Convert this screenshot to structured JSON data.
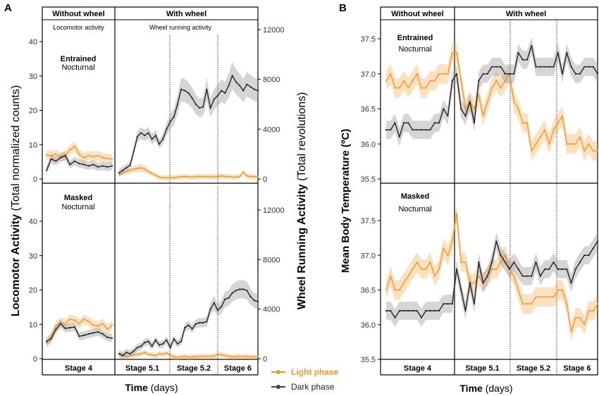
{
  "chart_data": [
    {
      "panel": "A",
      "type": "line",
      "ylabel_left_bold": "Locomotor Activity",
      "ylabel_left_normal": " (Total normalized counts)",
      "ylabel_right_bold": "Wheel Running Activity",
      "ylabel_right_normal": " (Total revolutions)",
      "xlabel_bold": "Time",
      "xlabel_normal": " (days)",
      "header_left": "Without wheel",
      "header_right": "With wheel",
      "sub_left": "Locomotor activity",
      "sub_right": "Wheel running activity",
      "left_ylim": [
        0,
        45
      ],
      "left_ticks": [
        "0",
        "10",
        "20",
        "30",
        "40"
      ],
      "right_ylim": [
        0,
        13500
      ],
      "right_ticks": [
        "0",
        "4000",
        "8000",
        "12000"
      ],
      "stages": [
        "Stage 4",
        "Stage 5.1",
        "Stage 5.2",
        "Stage 6"
      ],
      "legend": [
        {
          "name": "Light phase",
          "color": "#f39a2e"
        },
        {
          "name": "Dark phase",
          "color": "#444444"
        }
      ],
      "subpanels": [
        {
          "title_bold": "Entrained",
          "title_normal": "Nocturnal",
          "locomotor": {
            "light": [
              7,
              6.8,
              7.2,
              6.5,
              6.8,
              8.5,
              9.5,
              7.2,
              6.2,
              6.8,
              6.5,
              6.8,
              6.2,
              6,
              5.8
            ],
            "dark": [
              2.5,
              5.8,
              5.2,
              6.2,
              6.8,
              4.2,
              5.2,
              4.5,
              4.2,
              3.8,
              4.2,
              3.5,
              3.8,
              3.5,
              3.8
            ]
          },
          "wheel": {
            "light": [
              350,
              500,
              600,
              700,
              800,
              850,
              900,
              800,
              600,
              450,
              300,
              150,
              100,
              100,
              120,
              100,
              150,
              180,
              200,
              180,
              150,
              180,
              200,
              200,
              180,
              200,
              150,
              200,
              250,
              200,
              200,
              150,
              150,
              200,
              550,
              250,
              200,
              200,
              150
            ],
            "dark": [
              500,
              700,
              900,
              1100,
              2200,
              3400,
              3700,
              3500,
              3700,
              3200,
              3500,
              2800,
              3200,
              4000,
              4600,
              5000,
              6000,
              7200,
              7100,
              6900,
              6500,
              6000,
              5700,
              5800,
              7200,
              5700,
              6400,
              6700,
              7100,
              6900,
              7500,
              8300,
              7800,
              7500,
              7100,
              7600,
              7400,
              7200,
              7100
            ]
          }
        },
        {
          "title_bold": "Masked",
          "title_normal": "Nocturnal",
          "locomotor": {
            "light": [
              4.5,
              6.5,
              9.5,
              10.5,
              10.2,
              11.5,
              11.2,
              10.2,
              11.5,
              10.8,
              9.8,
              9.5,
              10.2,
              8.5,
              9.8
            ],
            "dark": [
              5,
              5.8,
              8.5,
              10.2,
              8.8,
              9,
              9.2,
              6.5,
              6.8,
              7.2,
              7.5,
              7.8,
              7.2,
              6.2,
              6
            ]
          },
          "wheel": {
            "light": [
              350,
              300,
              150,
              250,
              300,
              350,
              400,
              500,
              350,
              300,
              250,
              400,
              350,
              450,
              300,
              150,
              100,
              150,
              200,
              120,
              150,
              150,
              180,
              200,
              180,
              200,
              200,
              350,
              300,
              250,
              200,
              150,
              150,
              200,
              150,
              200,
              150,
              150,
              150
            ],
            "dark": [
              400,
              250,
              500,
              400,
              600,
              900,
              1000,
              1300,
              1400,
              1000,
              1500,
              1100,
              1200,
              1500,
              900,
              1600,
              1200,
              1400,
              2500,
              2700,
              2400,
              2800,
              2900,
              2900,
              3000,
              4000,
              4500,
              3900,
              4200,
              4800,
              4900,
              5300,
              5500,
              5600,
              5600,
              5500,
              5000,
              4700,
              4600
            ]
          }
        }
      ]
    },
    {
      "panel": "B",
      "type": "line",
      "ylabel": "Mean Body Temperature (ºC)",
      "xlabel_bold": "Time",
      "xlabel_normal": " (days)",
      "header_left": "Without wheel",
      "header_right": "With wheel",
      "ylim": [
        35.5,
        37.75
      ],
      "ticks": [
        "35.5",
        "36.0",
        "36.5",
        "37.0",
        "37.5"
      ],
      "stages": [
        "Stage 4",
        "Stage 5.1",
        "Stage 5.2",
        "Stage 6"
      ],
      "subpanels": [
        {
          "title_bold": "Entrained",
          "title_normal": "Nocturnal",
          "light": [
            36.9,
            37.0,
            36.8,
            36.8,
            36.9,
            36.8,
            36.9,
            37.0,
            36.8,
            36.8,
            36.9,
            36.9,
            37.0,
            37.0,
            37.0,
            37.3,
            37.3,
            36.9,
            36.5,
            36.6,
            36.5,
            36.7,
            36.4,
            36.6,
            36.8,
            36.9,
            36.8,
            36.9,
            37.0,
            36.6,
            36.5,
            36.3,
            36.3,
            35.9,
            36.0,
            36.1,
            36.2,
            36.0,
            36.2,
            36.3,
            36.4,
            36.0,
            36.0,
            36.0,
            36.1,
            35.9,
            36.0,
            35.9,
            35.9
          ],
          "dark": [
            36.2,
            36.2,
            36.3,
            36.1,
            36.3,
            36.3,
            36.2,
            36.2,
            36.2,
            36.2,
            36.2,
            36.3,
            36.3,
            36.5,
            36.4,
            36.9,
            37.0,
            36.5,
            36.4,
            36.6,
            36.3,
            36.9,
            37.0,
            37.0,
            37.1,
            37.1,
            37.1,
            37.0,
            37.0,
            37.0,
            37.3,
            37.2,
            37.2,
            37.4,
            37.1,
            37.1,
            37.1,
            37.1,
            37.1,
            37.3,
            37.0,
            37.3,
            37.1,
            37.0,
            37.0,
            37.1,
            37.1,
            37.1,
            37.0
          ]
        },
        {
          "title_bold": "Masked",
          "title_normal": "Nocturnal",
          "light": [
            36.5,
            36.7,
            36.5,
            36.5,
            36.6,
            36.7,
            36.8,
            36.9,
            36.8,
            36.8,
            36.9,
            36.7,
            36.8,
            37.1,
            37.0,
            37.2,
            37.6,
            36.9,
            36.9,
            36.6,
            36.6,
            36.7,
            36.6,
            36.7,
            36.8,
            36.8,
            36.9,
            37.0,
            36.8,
            36.7,
            36.5,
            36.3,
            36.3,
            36.3,
            36.4,
            36.4,
            36.4,
            36.4,
            36.4,
            36.5,
            36.5,
            36.3,
            35.9,
            36.1,
            36.1,
            36.0,
            36.2,
            36.2,
            36.3
          ],
          "dark": [
            36.2,
            36.2,
            36.1,
            36.2,
            36.2,
            36.2,
            36.2,
            36.2,
            36.1,
            36.2,
            36.2,
            36.2,
            36.2,
            36.3,
            36.3,
            36.3,
            36.8,
            36.5,
            36.2,
            36.6,
            36.3,
            36.9,
            36.6,
            36.7,
            36.9,
            37.2,
            37.0,
            36.9,
            36.8,
            36.9,
            36.8,
            36.7,
            36.7,
            36.7,
            36.9,
            36.7,
            36.8,
            36.8,
            36.9,
            36.8,
            36.8,
            36.8,
            36.6,
            36.8,
            36.9,
            37.0,
            37.0,
            37.1,
            37.2
          ]
        }
      ]
    }
  ]
}
